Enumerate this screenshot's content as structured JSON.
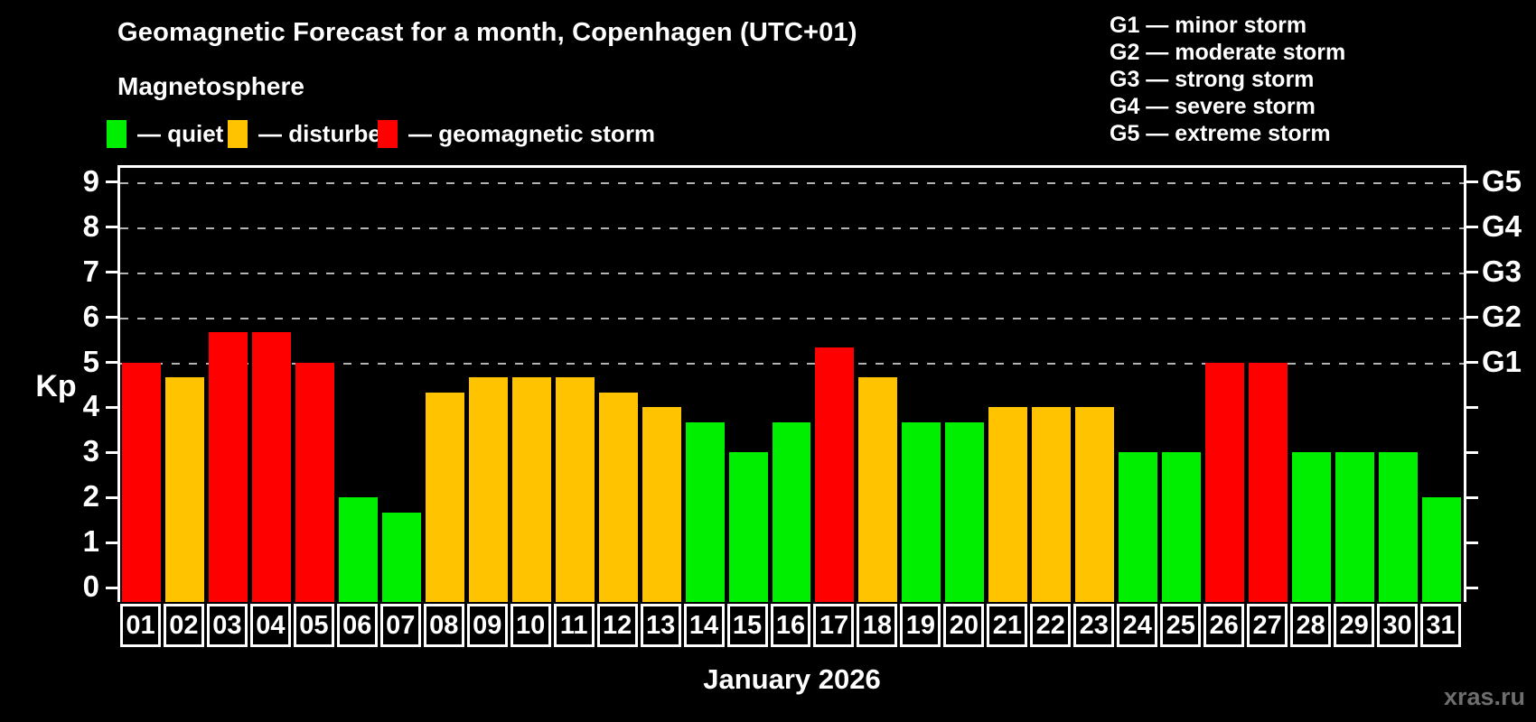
{
  "page": {
    "title": "Geomagnetic Forecast for a month, Copenhagen (UTC+01)",
    "subtitle": "Magnetosphere",
    "watermark": "xras.ru"
  },
  "legend": {
    "items": [
      {
        "name": "quiet",
        "label": "— quiet",
        "color": "#00ee00"
      },
      {
        "name": "disturbed",
        "label": "— disturbed",
        "color": "#ffc300"
      },
      {
        "name": "storm",
        "label": "— geomagnetic storm",
        "color": "#ff0000"
      }
    ]
  },
  "storm_scale": [
    "G1 — minor storm",
    "G2 — moderate storm",
    "G3 — strong storm",
    "G4 — severe storm",
    "G5 — extreme storm"
  ],
  "chart_data": {
    "type": "bar",
    "title": "Geomagnetic Forecast for a month, Copenhagen (UTC+01)",
    "subtitle": "Magnetosphere",
    "xlabel": "January 2026",
    "ylabel": "Kp",
    "ylim": [
      0,
      9
    ],
    "yticks": [
      0,
      1,
      2,
      3,
      4,
      5,
      6,
      7,
      8,
      9
    ],
    "gridlines_at": [
      5,
      6,
      7,
      8,
      9
    ],
    "grid": "horizontal dashed lines only at storm levels G1–G5 (Kp 5–9)",
    "legend_position": "top-left",
    "right_axis": [
      {
        "value": 5,
        "label": "G1"
      },
      {
        "value": 6,
        "label": "G2"
      },
      {
        "value": 7,
        "label": "G3"
      },
      {
        "value": 8,
        "label": "G4"
      },
      {
        "value": 9,
        "label": "G5"
      }
    ],
    "categories": [
      "01",
      "02",
      "03",
      "04",
      "05",
      "06",
      "07",
      "08",
      "09",
      "10",
      "11",
      "12",
      "13",
      "14",
      "15",
      "16",
      "17",
      "18",
      "19",
      "20",
      "21",
      "22",
      "23",
      "24",
      "25",
      "26",
      "27",
      "28",
      "29",
      "30",
      "31"
    ],
    "values": [
      5,
      4.67,
      5.67,
      5.67,
      5,
      2,
      1.67,
      4.33,
      4.67,
      4.67,
      4.67,
      4.33,
      4,
      3.67,
      3,
      3.67,
      5.33,
      4.67,
      3.67,
      3.67,
      4,
      4,
      4,
      3,
      3,
      5,
      5,
      3,
      3,
      3,
      2
    ],
    "statuses": [
      "storm",
      "disturbed",
      "storm",
      "storm",
      "storm",
      "quiet",
      "quiet",
      "disturbed",
      "disturbed",
      "disturbed",
      "disturbed",
      "disturbed",
      "disturbed",
      "quiet",
      "quiet",
      "quiet",
      "storm",
      "disturbed",
      "quiet",
      "quiet",
      "disturbed",
      "disturbed",
      "disturbed",
      "quiet",
      "quiet",
      "storm",
      "storm",
      "quiet",
      "quiet",
      "quiet",
      "quiet"
    ],
    "colors": {
      "quiet": "#00ee00",
      "disturbed": "#ffc300",
      "storm": "#ff0000"
    }
  }
}
